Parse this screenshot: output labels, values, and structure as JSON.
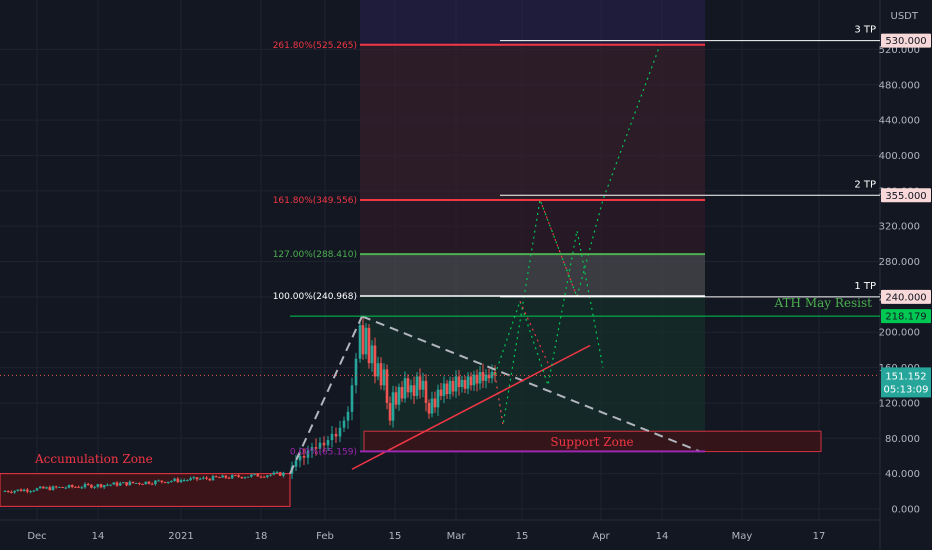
{
  "currency": "USDT",
  "chart_data": {
    "type": "candlestick",
    "ylim": [
      -5,
      565
    ],
    "y_ticks": [
      "0.000",
      "40.000",
      "80.000",
      "120.000",
      "160.000",
      "200.000",
      "240.000",
      "280.000",
      "320.000",
      "360.000",
      "400.000",
      "440.000",
      "480.000",
      "520.000"
    ],
    "y_tick_values": [
      0,
      40,
      80,
      120,
      160,
      200,
      240,
      280,
      320,
      360,
      400,
      440,
      480,
      520
    ],
    "x_ticks": [
      "Dec",
      "14",
      "2021",
      "18",
      "Feb",
      "15",
      "Mar",
      "15",
      "Apr",
      "14",
      "May",
      "17"
    ],
    "fib_levels": [
      {
        "label": "261.80%(525.265)",
        "value": 525.265,
        "color": "#f23645"
      },
      {
        "label": "161.80%(349.556)",
        "value": 349.556,
        "color": "#f23645"
      },
      {
        "label": "127.00%(288.410)",
        "value": 288.41,
        "color": "#4caf50"
      },
      {
        "label": "100.00%(240.968)",
        "value": 240.968,
        "color": "#ffffff"
      },
      {
        "label": "0.00%(65.159)",
        "value": 65.159,
        "color": "#9c27b0"
      }
    ],
    "targets": [
      {
        "label": "3 TP",
        "value": 530.0,
        "tag": "530.000"
      },
      {
        "label": "2 TP",
        "value": 355.0,
        "tag": "355.000"
      },
      {
        "label": "1 TP",
        "value": 240.0,
        "tag": "240.000"
      }
    ],
    "ath": {
      "label": "ATH May Resist",
      "value": 218.179,
      "tag": "218.179"
    },
    "current_price": {
      "value": 151.152,
      "tag": "151.152",
      "countdown": "05:13:09"
    },
    "zones": {
      "accumulation": "Accumulation Zone",
      "support": "Support Zone"
    }
  }
}
